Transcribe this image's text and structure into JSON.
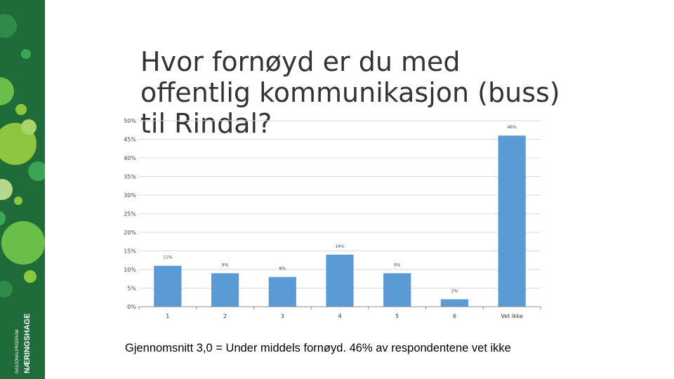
{
  "slide": {
    "title": "Hvor fornøyd er du med offentlig kommunikasjon (buss) til Rindal?",
    "footnote": "Gjennomsnitt 3,0 = Under middels fornøyd. 46% av respondentene vet ikke"
  },
  "brand": {
    "line1": "NASJONALPROGRAM",
    "line2": "NÆRINGSHAGE",
    "colors": {
      "sidebar": "#1f6b3a",
      "accent_light": "#8cc63f",
      "accent_mid": "#3aa655"
    }
  },
  "chart_data": {
    "type": "bar",
    "categories": [
      "1",
      "2",
      "3",
      "4",
      "5",
      "6",
      "Vet ikke"
    ],
    "values": [
      11,
      9,
      8,
      14,
      9,
      2,
      46
    ],
    "data_labels": [
      "11%",
      "9%",
      "8%",
      "14%",
      "9%",
      "2%",
      "46%"
    ],
    "y_ticks": [
      "0%",
      "5%",
      "10%",
      "15%",
      "20%",
      "25%",
      "30%",
      "35%",
      "40%",
      "45%",
      "50%"
    ],
    "ylim": [
      0,
      50
    ],
    "ytick_step": 5,
    "grid": true,
    "bar_color": "#5b9bd5",
    "title": "",
    "xlabel": "",
    "ylabel": ""
  }
}
